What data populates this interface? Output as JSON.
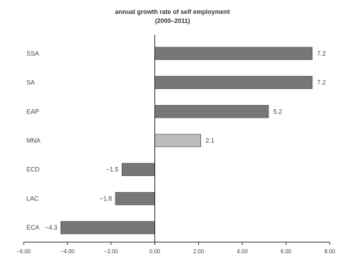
{
  "chart_data": {
    "type": "bar",
    "orientation": "horizontal",
    "title": [
      "annual growth rate of self employment",
      "(2000–2011)"
    ],
    "categories": [
      "SSA",
      "SA",
      "EAP",
      "MNA",
      "ECD",
      "LAC",
      "ECA"
    ],
    "values": [
      7.2,
      7.2,
      5.2,
      2.1,
      -1.5,
      -1.8,
      -4.3
    ],
    "data_labels": [
      "7.2",
      "7.2",
      "5.2",
      "2.1",
      "−1.5",
      "−1.8",
      "−4.3"
    ],
    "highlight_index": 3,
    "xlim": [
      -6,
      8
    ],
    "xticks": [
      -6,
      -4,
      -2,
      0,
      2,
      4,
      6,
      8
    ],
    "xtick_labels": [
      "−6.00",
      "−4.00",
      "−2.00",
      "0.00",
      "2.00",
      "4.00",
      "6.00",
      "8.00"
    ],
    "xlabel": "",
    "ylabel": "",
    "grid": false,
    "legend": "none",
    "colors": {
      "bar": "#777777",
      "highlight": "#bdbdbd",
      "bar_edge": "#555555",
      "axis": "#222222"
    }
  }
}
